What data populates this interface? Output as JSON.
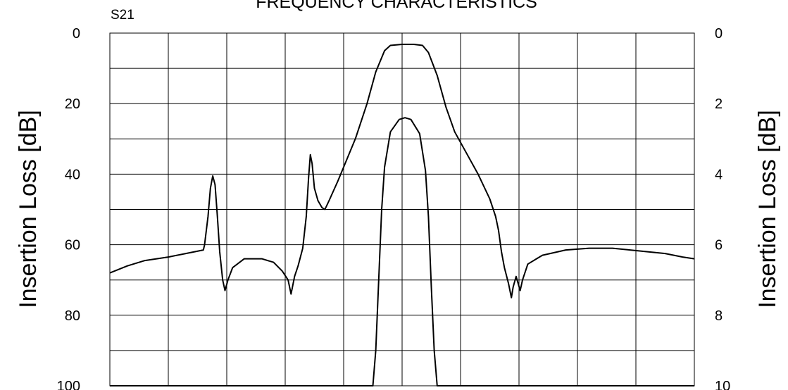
{
  "chart_data": {
    "type": "line",
    "title": "FREQUENCY CHARACTERISTICS",
    "parameter_label": "S21",
    "ylabel_left": "Insertion Loss [dB]",
    "ylabel_right": "Insertion Loss [dB]",
    "y_left_ticks": [
      "0",
      "20",
      "40",
      "60",
      "80",
      "100"
    ],
    "y_right_ticks": [
      "0",
      "2",
      "4",
      "6",
      "8",
      "10"
    ],
    "ylim_left": [
      0,
      100
    ],
    "ylim_right": [
      0,
      10
    ],
    "y_inverted": true,
    "x_divisions": 10,
    "grid": true,
    "series": [
      {
        "axis": "left",
        "points": [
          [
            0.0,
            68
          ],
          [
            0.3,
            66
          ],
          [
            0.6,
            64.5
          ],
          [
            1.0,
            63.5
          ],
          [
            1.3,
            62.5
          ],
          [
            1.6,
            61.5
          ],
          [
            1.62,
            60
          ],
          [
            1.68,
            52
          ],
          [
            1.72,
            44
          ],
          [
            1.76,
            40.5
          ],
          [
            1.8,
            43
          ],
          [
            1.84,
            52
          ],
          [
            1.88,
            62
          ],
          [
            1.93,
            70
          ],
          [
            1.97,
            73
          ],
          [
            2.02,
            70
          ],
          [
            2.1,
            66.5
          ],
          [
            2.3,
            64
          ],
          [
            2.6,
            64
          ],
          [
            2.8,
            65
          ],
          [
            2.95,
            67.5
          ],
          [
            3.05,
            70
          ],
          [
            3.1,
            74
          ],
          [
            3.16,
            69
          ],
          [
            3.22,
            66
          ],
          [
            3.3,
            61
          ],
          [
            3.36,
            52
          ],
          [
            3.4,
            41
          ],
          [
            3.43,
            34.5
          ],
          [
            3.46,
            37
          ],
          [
            3.5,
            44
          ],
          [
            3.56,
            47.5
          ],
          [
            3.63,
            49.5
          ],
          [
            3.68,
            50
          ],
          [
            3.75,
            47.5
          ],
          [
            3.9,
            42
          ],
          [
            4.0,
            38
          ],
          [
            4.2,
            30
          ],
          [
            4.4,
            20
          ],
          [
            4.55,
            11
          ],
          [
            4.7,
            5
          ],
          [
            4.8,
            3.5
          ],
          [
            5.0,
            3.2
          ],
          [
            5.2,
            3.2
          ],
          [
            5.35,
            3.5
          ],
          [
            5.45,
            5.5
          ],
          [
            5.6,
            12
          ],
          [
            5.75,
            21
          ],
          [
            5.9,
            28
          ],
          [
            6.1,
            34
          ],
          [
            6.3,
            40
          ],
          [
            6.5,
            47
          ],
          [
            6.6,
            52
          ],
          [
            6.65,
            56
          ],
          [
            6.7,
            62
          ],
          [
            6.75,
            66.5
          ],
          [
            6.82,
            71
          ],
          [
            6.87,
            75
          ],
          [
            6.9,
            72
          ],
          [
            6.95,
            69
          ],
          [
            7.02,
            73
          ],
          [
            7.06,
            70
          ],
          [
            7.15,
            65.5
          ],
          [
            7.4,
            63
          ],
          [
            7.8,
            61.5
          ],
          [
            8.2,
            61
          ],
          [
            8.6,
            61
          ],
          [
            8.9,
            61.5
          ],
          [
            9.2,
            62
          ],
          [
            9.5,
            62.5
          ],
          [
            9.8,
            63.5
          ],
          [
            10.0,
            64
          ]
        ]
      },
      {
        "axis": "right",
        "points": [
          [
            0.0,
            10
          ],
          [
            4.5,
            10
          ],
          [
            4.55,
            9.0
          ],
          [
            4.6,
            7.0
          ],
          [
            4.65,
            5.0
          ],
          [
            4.7,
            3.8
          ],
          [
            4.8,
            2.8
          ],
          [
            4.95,
            2.45
          ],
          [
            5.05,
            2.4
          ],
          [
            5.15,
            2.45
          ],
          [
            5.3,
            2.85
          ],
          [
            5.4,
            3.9
          ],
          [
            5.45,
            5.2
          ],
          [
            5.5,
            7.2
          ],
          [
            5.55,
            9.0
          ],
          [
            5.6,
            10
          ],
          [
            10.0,
            10
          ]
        ]
      }
    ]
  }
}
